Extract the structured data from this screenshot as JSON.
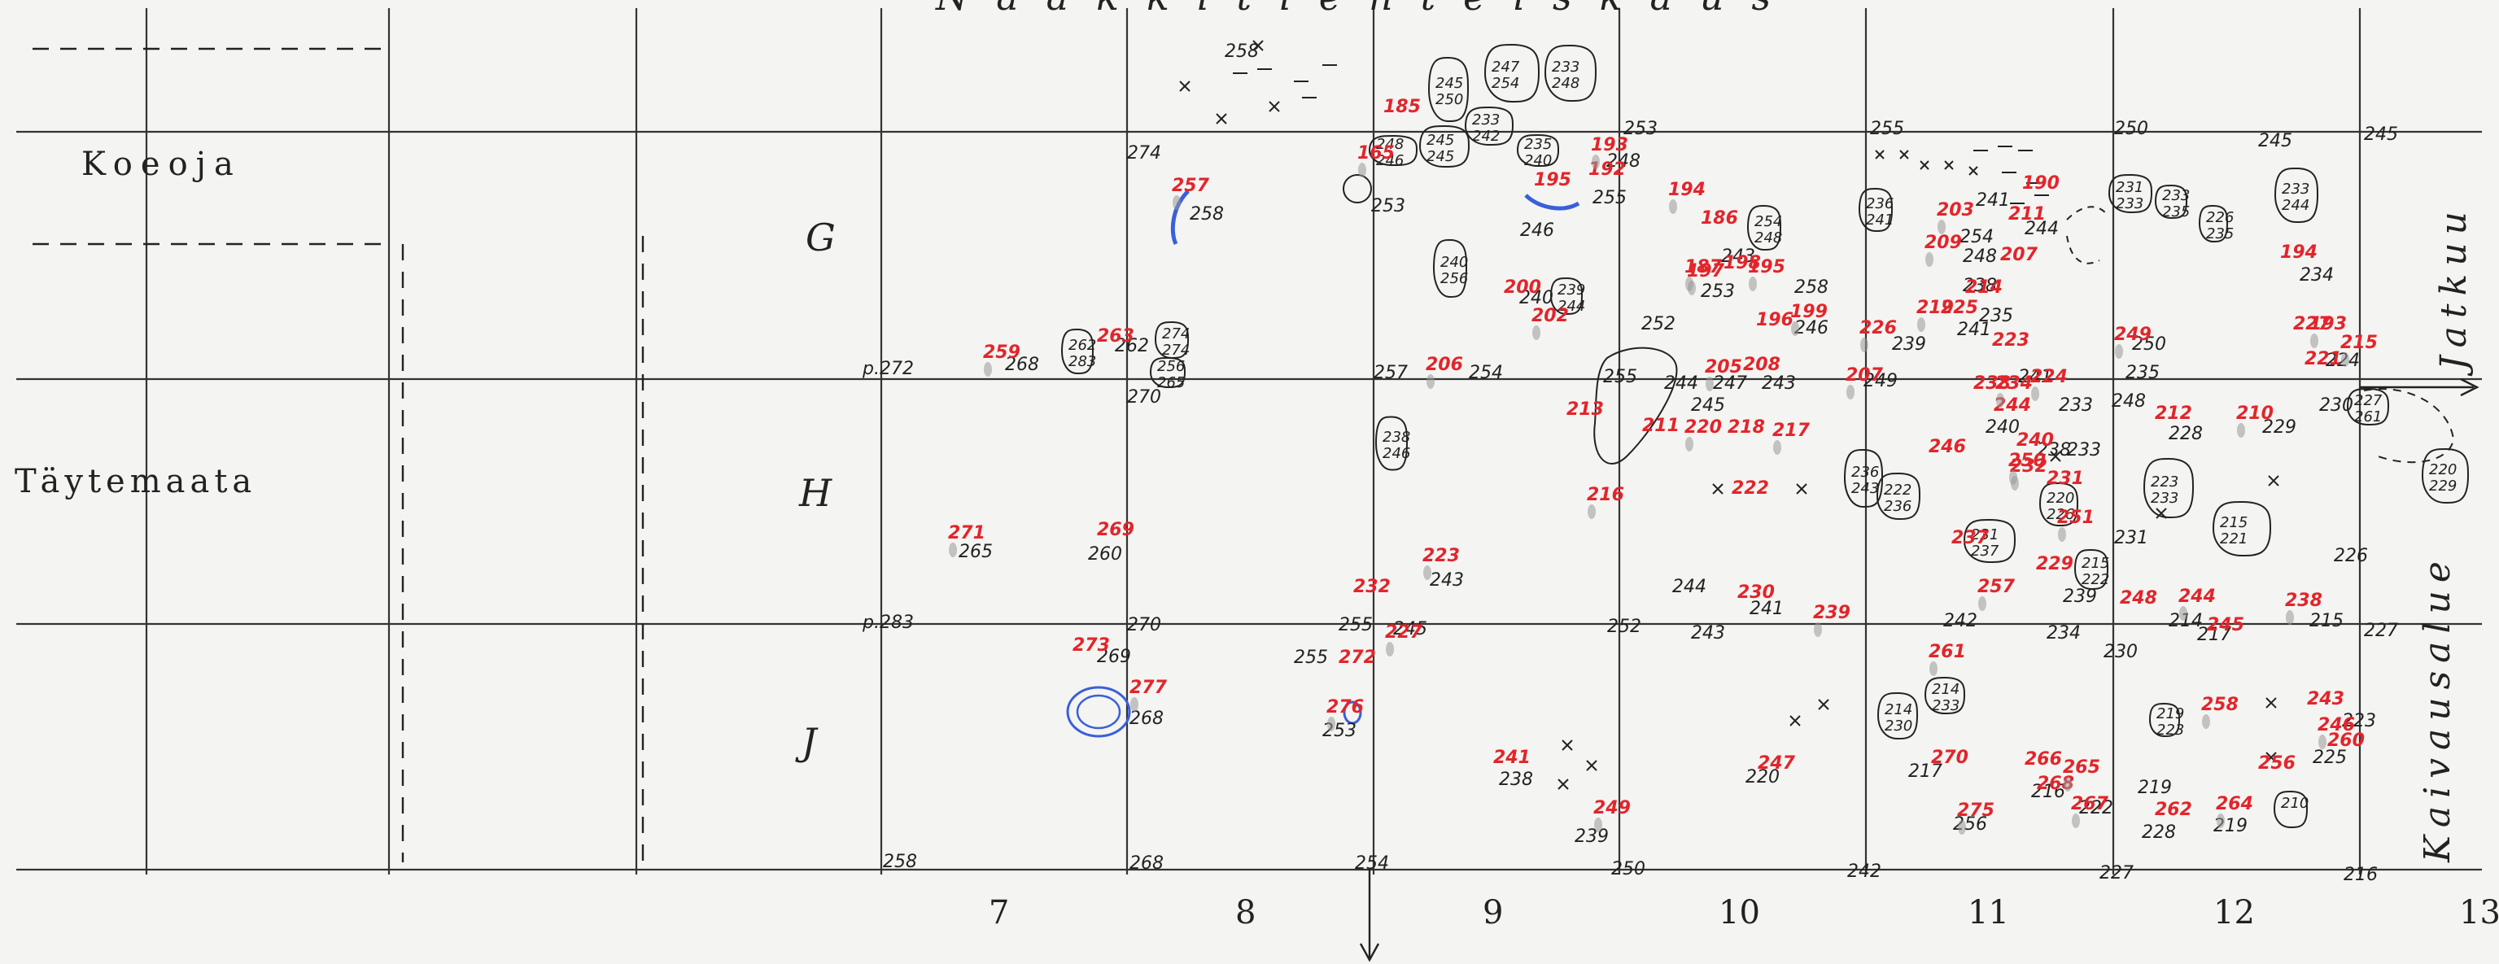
{
  "top_title": "Naakkitienteiskaus",
  "legend": {
    "koeoja": "Koeoja",
    "taytemaata": "Täytemaata"
  },
  "rows": [
    "G",
    "H",
    "J"
  ],
  "columns": [
    "7",
    "8",
    "9",
    "10",
    "11",
    "12",
    "13"
  ],
  "side_labels": {
    "jatkuu": "Jatkuu",
    "kaivausalue": "Kaivausalue"
  },
  "grid_levels": [
    {
      "id": "gl1",
      "t": "274"
    },
    {
      "id": "gl2",
      "t": "258"
    },
    {
      "id": "gl3",
      "t": "253"
    },
    {
      "id": "gl4",
      "t": "255"
    },
    {
      "id": "gl5",
      "t": "250"
    },
    {
      "id": "gl6",
      "t": "245"
    },
    {
      "id": "gl7",
      "t": "p.272"
    },
    {
      "id": "gl8",
      "t": "270"
    },
    {
      "id": "gl9",
      "t": "257"
    },
    {
      "id": "gl10",
      "t": "255"
    },
    {
      "id": "gl11",
      "t": "249"
    },
    {
      "id": "gl12",
      "t": "248"
    },
    {
      "id": "gl13",
      "t": "230"
    },
    {
      "id": "gl14",
      "t": "p.283"
    },
    {
      "id": "gl15",
      "t": "270"
    },
    {
      "id": "gl16",
      "t": "255"
    },
    {
      "id": "gl17",
      "t": "252"
    },
    {
      "id": "gl18",
      "t": "230"
    },
    {
      "id": "gl19",
      "t": "227"
    },
    {
      "id": "gl20",
      "t": "258"
    },
    {
      "id": "gl21",
      "t": "268"
    },
    {
      "id": "gl22",
      "t": "254"
    },
    {
      "id": "gl23",
      "t": "250"
    },
    {
      "id": "gl24",
      "t": "242"
    },
    {
      "id": "gl25",
      "t": "227"
    },
    {
      "id": "gl26",
      "t": "216"
    }
  ],
  "finds": [
    {
      "id": "f1",
      "t": "257"
    },
    {
      "id": "f2",
      "t": "185"
    },
    {
      "id": "f3",
      "t": "165"
    },
    {
      "id": "f4",
      "t": "195"
    },
    {
      "id": "f5",
      "t": "193"
    },
    {
      "id": "f6",
      "t": "192"
    },
    {
      "id": "f7",
      "t": "194"
    },
    {
      "id": "f8",
      "t": "186"
    },
    {
      "id": "f9",
      "t": "187"
    },
    {
      "id": "f10",
      "t": "190"
    },
    {
      "id": "f11",
      "t": "203"
    },
    {
      "id": "f12",
      "t": "211"
    },
    {
      "id": "f13",
      "t": "209"
    },
    {
      "id": "f14",
      "t": "207"
    },
    {
      "id": "f15",
      "t": "195"
    },
    {
      "id": "f16",
      "t": "200"
    },
    {
      "id": "f17",
      "t": "202"
    },
    {
      "id": "f18",
      "t": "196"
    },
    {
      "id": "f19",
      "t": "199"
    },
    {
      "id": "f20",
      "t": "214"
    },
    {
      "id": "f21",
      "t": "219"
    },
    {
      "id": "f22",
      "t": "225"
    },
    {
      "id": "f23",
      "t": "226"
    },
    {
      "id": "f24",
      "t": "223"
    },
    {
      "id": "f25",
      "t": "249"
    },
    {
      "id": "f26",
      "t": "227"
    },
    {
      "id": "f27",
      "t": "193"
    },
    {
      "id": "f28",
      "t": "221"
    },
    {
      "id": "f29",
      "t": "215"
    },
    {
      "id": "f30",
      "t": "194"
    },
    {
      "id": "f31",
      "t": "259"
    },
    {
      "id": "f32",
      "t": "263"
    },
    {
      "id": "f33",
      "t": "206"
    },
    {
      "id": "f34",
      "t": "213"
    },
    {
      "id": "f35",
      "t": "205"
    },
    {
      "id": "f36",
      "t": "208"
    },
    {
      "id": "f37",
      "t": "207"
    },
    {
      "id": "f38",
      "t": "238"
    },
    {
      "id": "f39",
      "t": "234"
    },
    {
      "id": "f40",
      "t": "244"
    },
    {
      "id": "f41",
      "t": "224"
    },
    {
      "id": "f42",
      "t": "212"
    },
    {
      "id": "f43",
      "t": "210"
    },
    {
      "id": "f44",
      "t": "211"
    },
    {
      "id": "f45",
      "t": "220"
    },
    {
      "id": "f46",
      "t": "218"
    },
    {
      "id": "f47",
      "t": "217"
    },
    {
      "id": "f48",
      "t": "222"
    },
    {
      "id": "f49",
      "t": "216"
    },
    {
      "id": "f50",
      "t": "246"
    },
    {
      "id": "f51",
      "t": "250"
    },
    {
      "id": "f52",
      "t": "231"
    },
    {
      "id": "f53",
      "t": "251"
    },
    {
      "id": "f54",
      "t": "237"
    },
    {
      "id": "f55",
      "t": "271"
    },
    {
      "id": "f56",
      "t": "269"
    },
    {
      "id": "f57",
      "t": "223"
    },
    {
      "id": "f58",
      "t": "232"
    },
    {
      "id": "f59",
      "t": "227"
    },
    {
      "id": "f60",
      "t": "230"
    },
    {
      "id": "f61",
      "t": "257"
    },
    {
      "id": "f62",
      "t": "229"
    },
    {
      "id": "f63",
      "t": "239"
    },
    {
      "id": "f64",
      "t": "248"
    },
    {
      "id": "f65",
      "t": "244"
    },
    {
      "id": "f66",
      "t": "245"
    },
    {
      "id": "f67",
      "t": "238"
    },
    {
      "id": "f68",
      "t": "273"
    },
    {
      "id": "f69",
      "t": "277"
    },
    {
      "id": "f70",
      "t": "272"
    },
    {
      "id": "f71",
      "t": "276"
    },
    {
      "id": "f72",
      "t": "241"
    },
    {
      "id": "f73",
      "t": "249"
    },
    {
      "id": "f74",
      "t": "247"
    },
    {
      "id": "f75",
      "t": "261"
    },
    {
      "id": "f76",
      "t": "270"
    },
    {
      "id": "f77",
      "t": "275"
    },
    {
      "id": "f78",
      "t": "266"
    },
    {
      "id": "f79",
      "t": "265"
    },
    {
      "id": "f80",
      "t": "268"
    },
    {
      "id": "f81",
      "t": "267"
    },
    {
      "id": "f82",
      "t": "262"
    },
    {
      "id": "f83",
      "t": "258"
    },
    {
      "id": "f84",
      "t": "256"
    },
    {
      "id": "f85",
      "t": "264"
    },
    {
      "id": "f86",
      "t": "243"
    },
    {
      "id": "f87",
      "t": "246"
    },
    {
      "id": "f88",
      "t": "260"
    },
    {
      "id": "f89",
      "t": "197"
    },
    {
      "id": "f90",
      "t": "198"
    },
    {
      "id": "f91",
      "t": "232"
    },
    {
      "id": "f92",
      "t": "240"
    }
  ],
  "levels": [
    {
      "id": "l1",
      "t": "258"
    },
    {
      "id": "l2",
      "t": "245"
    },
    {
      "id": "l3",
      "t": "253"
    },
    {
      "id": "l4",
      "t": "248"
    },
    {
      "id": "l5",
      "t": "246"
    },
    {
      "id": "l6",
      "t": "255"
    },
    {
      "id": "l7",
      "t": "241"
    },
    {
      "id": "l8",
      "t": "244"
    },
    {
      "id": "l9",
      "t": "243"
    },
    {
      "id": "l10",
      "t": "253"
    },
    {
      "id": "l11",
      "t": "246"
    },
    {
      "id": "l12",
      "t": "258"
    },
    {
      "id": "l13",
      "t": "239"
    },
    {
      "id": "l14",
      "t": "238"
    },
    {
      "id": "l15",
      "t": "235"
    },
    {
      "id": "l16",
      "t": "241"
    },
    {
      "id": "l17",
      "t": "234"
    },
    {
      "id": "l18",
      "t": "240"
    },
    {
      "id": "l19",
      "t": "252"
    },
    {
      "id": "l20",
      "t": "250"
    },
    {
      "id": "l21",
      "t": "235"
    },
    {
      "id": "l22",
      "t": "224"
    },
    {
      "id": "l23",
      "t": "268"
    },
    {
      "id": "l24",
      "t": "262"
    },
    {
      "id": "l25",
      "t": "254"
    },
    {
      "id": "l26",
      "t": "241"
    },
    {
      "id": "l27",
      "t": "244"
    },
    {
      "id": "l28",
      "t": "247"
    },
    {
      "id": "l29",
      "t": "243"
    },
    {
      "id": "l30",
      "t": "245"
    },
    {
      "id": "l31",
      "t": "240"
    },
    {
      "id": "l32",
      "t": "238"
    },
    {
      "id": "l33",
      "t": "233"
    },
    {
      "id": "l34",
      "t": "228"
    },
    {
      "id": "l35",
      "t": "229"
    },
    {
      "id": "l36",
      "t": "226"
    },
    {
      "id": "l37",
      "t": "265"
    },
    {
      "id": "l38",
      "t": "260"
    },
    {
      "id": "l39",
      "t": "243"
    },
    {
      "id": "l40",
      "t": "245"
    },
    {
      "id": "l41",
      "t": "244"
    },
    {
      "id": "l42",
      "t": "241"
    },
    {
      "id": "l43",
      "t": "243"
    },
    {
      "id": "l44",
      "t": "234"
    },
    {
      "id": "l45",
      "t": "231"
    },
    {
      "id": "l46",
      "t": "214"
    },
    {
      "id": "l47",
      "t": "217"
    },
    {
      "id": "l48",
      "t": "215"
    },
    {
      "id": "l49",
      "t": "269"
    },
    {
      "id": "l50",
      "t": "268"
    },
    {
      "id": "l51",
      "t": "255"
    },
    {
      "id": "l52",
      "t": "253"
    },
    {
      "id": "l53",
      "t": "238"
    },
    {
      "id": "l54",
      "t": "239"
    },
    {
      "id": "l55",
      "t": "220"
    },
    {
      "id": "l56",
      "t": "217"
    },
    {
      "id": "l57",
      "t": "256"
    },
    {
      "id": "l58",
      "t": "216"
    },
    {
      "id": "l59",
      "t": "222"
    },
    {
      "id": "l60",
      "t": "219"
    },
    {
      "id": "l61",
      "t": "228"
    },
    {
      "id": "l62",
      "t": "219"
    },
    {
      "id": "l63",
      "t": "225"
    },
    {
      "id": "l64",
      "t": "223"
    },
    {
      "id": "l65",
      "t": "254"
    },
    {
      "id": "l66",
      "t": "248"
    },
    {
      "id": "l67",
      "t": "242"
    },
    {
      "id": "l68",
      "t": "239"
    },
    {
      "id": "l69",
      "t": "233"
    }
  ],
  "stones": [
    {
      "id": "s1",
      "a": "245",
      "b": "250"
    },
    {
      "id": "s2",
      "a": "247",
      "b": "254"
    },
    {
      "id": "s3",
      "a": "233",
      "b": "248"
    },
    {
      "id": "s4",
      "a": "233",
      "b": "242"
    },
    {
      "id": "s5",
      "a": "248",
      "b": "246"
    },
    {
      "id": "s6",
      "a": "245",
      "b": "245"
    },
    {
      "id": "s7",
      "a": "235",
      "b": "240"
    },
    {
      "id": "s8",
      "a": "240",
      "b": "256"
    },
    {
      "id": "s9",
      "a": "262",
      "b": "283"
    },
    {
      "id": "s10",
      "a": "274",
      "b": "274"
    },
    {
      "id": "s11",
      "a": "256",
      "b": "265"
    },
    {
      "id": "s12",
      "a": "238",
      "b": "246"
    },
    {
      "id": "s13",
      "a": "236",
      "b": "241"
    },
    {
      "id": "s14",
      "a": "231",
      "b": "233"
    },
    {
      "id": "s15",
      "a": "233",
      "b": "244"
    },
    {
      "id": "s16",
      "a": "227",
      "b": "261"
    },
    {
      "id": "s17",
      "a": "223",
      "b": "233"
    },
    {
      "id": "s18",
      "a": "215",
      "b": "221"
    },
    {
      "id": "s19",
      "a": "220",
      "b": "229"
    },
    {
      "id": "s20",
      "a": "231",
      "b": "237"
    },
    {
      "id": "s21",
      "a": "236",
      "b": "243"
    },
    {
      "id": "s22",
      "a": "222",
      "b": "236"
    },
    {
      "id": "s23",
      "a": "220",
      "b": "226"
    },
    {
      "id": "s24",
      "a": "215",
      "b": "222"
    },
    {
      "id": "s25",
      "a": "214",
      "b": "230"
    },
    {
      "id": "s26",
      "a": "214",
      "b": "233"
    },
    {
      "id": "s27",
      "a": "219",
      "b": "223"
    },
    {
      "id": "s28",
      "a": "210",
      "b": ""
    },
    {
      "id": "s29",
      "a": "254",
      "b": "248"
    },
    {
      "id": "s30",
      "a": "239",
      "b": "244"
    },
    {
      "id": "s31",
      "a": "233",
      "b": "235"
    },
    {
      "id": "s32",
      "a": "226",
      "b": "235"
    }
  ]
}
